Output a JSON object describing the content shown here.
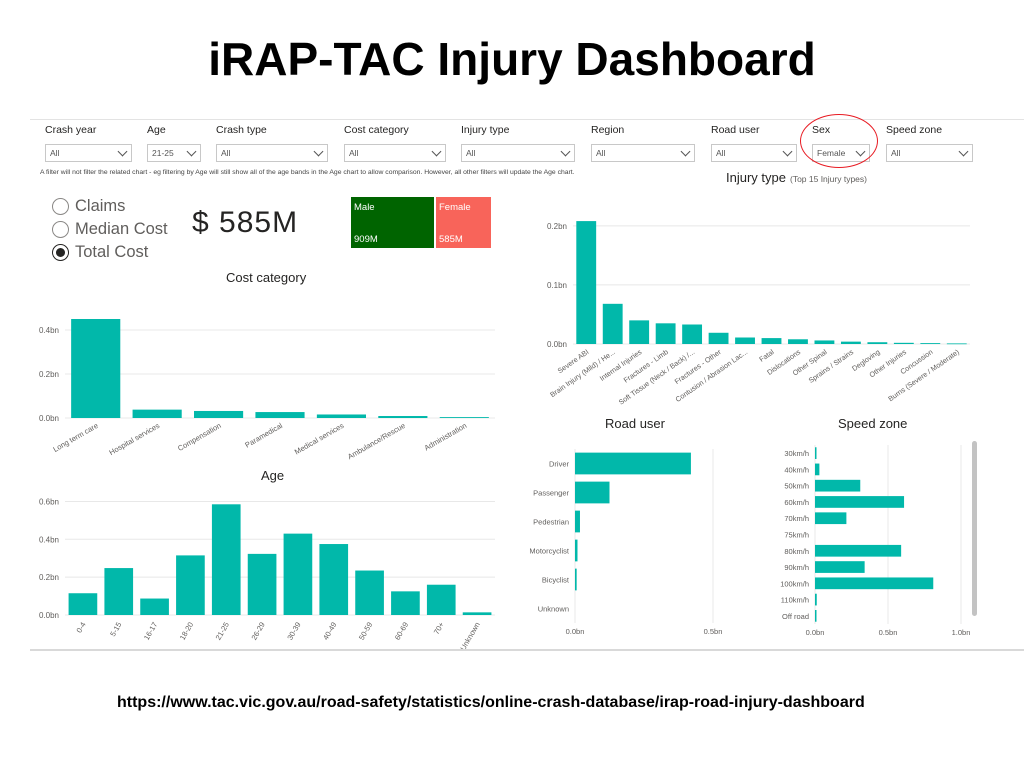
{
  "slide": {
    "title": "iRAP-TAC Injury Dashboard",
    "source_url": "https://www.tac.vic.gov.au/road-safety/statistics/online-crash-database/irap-road-injury-dashboard"
  },
  "filters": [
    {
      "label": "Crash year",
      "value": "All"
    },
    {
      "label": "Age",
      "value": "21-25"
    },
    {
      "label": "Crash type",
      "value": "All"
    },
    {
      "label": "Cost category",
      "value": "All"
    },
    {
      "label": "Injury type",
      "value": "All"
    },
    {
      "label": "Region",
      "value": "All"
    },
    {
      "label": "Road user",
      "value": "All"
    },
    {
      "label": "Sex",
      "value": "Female"
    },
    {
      "label": "Speed zone",
      "value": "All"
    }
  ],
  "filter_note": "A filter will not filter the related chart - eg filtering by Age will still show all of the age bands in the Age chart to allow comparison. However, all other filters will update the Age chart.",
  "measure_options": [
    {
      "label": "Claims",
      "selected": false
    },
    {
      "label": "Median Cost",
      "selected": false
    },
    {
      "label": "Total Cost",
      "selected": true
    }
  ],
  "total_cost_display": "$ 585M",
  "sex_tiles": [
    {
      "label": "Male",
      "value": "909M",
      "color": "#006400"
    },
    {
      "label": "Female",
      "value": "585M",
      "color": "#f8645a"
    }
  ],
  "colors": {
    "bar": "#01b8aa",
    "grid": "#e8e8e8",
    "axis_text": "#605e5c"
  },
  "chart_data": [
    {
      "id": "cost_category",
      "type": "bar",
      "title": "Cost category",
      "categories": [
        "Long term care",
        "Hospital services",
        "Compensation",
        "Paramedical",
        "Medical services",
        "Ambulance/Rescue",
        "Administration"
      ],
      "values": [
        0.45,
        0.038,
        0.032,
        0.027,
        0.016,
        0.009,
        0.004
      ],
      "ylim": [
        0,
        0.5
      ],
      "yticks": [
        0,
        0.2,
        0.4
      ],
      "ytick_labels": [
        "0.0bn",
        "0.2bn",
        "0.4bn"
      ],
      "xlabel": "",
      "ylabel": ""
    },
    {
      "id": "age",
      "type": "bar",
      "title": "Age",
      "categories": [
        "0-4",
        "5-15",
        "16-17",
        "18-20",
        "21-25",
        "26-29",
        "30-39",
        "40-49",
        "50-59",
        "60-69",
        "70+",
        "Unknown"
      ],
      "values": [
        0.115,
        0.248,
        0.087,
        0.315,
        0.585,
        0.323,
        0.43,
        0.375,
        0.235,
        0.125,
        0.16,
        0.014
      ],
      "ylim": [
        0,
        0.65
      ],
      "yticks": [
        0,
        0.2,
        0.4,
        0.6
      ],
      "ytick_labels": [
        "0.0bn",
        "0.2bn",
        "0.4bn",
        "0.6bn"
      ],
      "xlabel": "",
      "ylabel": ""
    },
    {
      "id": "injury_type",
      "type": "bar",
      "title": "Injury type",
      "subtitle": "(Top 15 Injury types)",
      "categories": [
        "Severe ABI",
        "Brain Injury (Mild) / He...",
        "Internal Injuries",
        "Fractures - Limb",
        "Soft Tissue (Neck / Back) /...",
        "Fractures - Other",
        "Contusion / Abrasion Lac...",
        "Fatal",
        "Dislocations",
        "Other Spinal",
        "Sprains / Strains",
        "Degloving",
        "Other Injuries",
        "Concussion",
        "Burns (Severe / Moderate)"
      ],
      "values": [
        0.208,
        0.068,
        0.04,
        0.035,
        0.033,
        0.019,
        0.011,
        0.01,
        0.008,
        0.006,
        0.004,
        0.003,
        0.002,
        0.0015,
        0.001
      ],
      "ylim": [
        0,
        0.22
      ],
      "yticks": [
        0,
        0.1,
        0.2
      ],
      "ytick_labels": [
        "0.0bn",
        "0.1bn",
        "0.2bn"
      ],
      "xlabel": "",
      "ylabel": ""
    },
    {
      "id": "road_user",
      "type": "bar",
      "orientation": "horizontal",
      "title": "Road user",
      "categories": [
        "Driver",
        "Passenger",
        "Pedestrian",
        "Motorcyclist",
        "Bicyclist",
        "Unknown"
      ],
      "values": [
        0.42,
        0.125,
        0.018,
        0.009,
        0.006,
        0
      ],
      "xlim": [
        0,
        0.5
      ],
      "xticks": [
        0,
        0.5
      ],
      "xtick_labels": [
        "0.0bn",
        "0.5bn"
      ],
      "xlabel": "",
      "ylabel": ""
    },
    {
      "id": "speed_zone",
      "type": "bar",
      "orientation": "horizontal",
      "title": "Speed zone",
      "categories": [
        "30km/h",
        "40km/h",
        "50km/h",
        "60km/h",
        "70km/h",
        "75km/h",
        "80km/h",
        "90km/h",
        "100km/h",
        "110km/h",
        "Off road"
      ],
      "values": [
        0.005,
        0.03,
        0.31,
        0.61,
        0.215,
        0,
        0.59,
        0.34,
        0.81,
        0.012,
        0.008
      ],
      "xlim": [
        0,
        1.0
      ],
      "xticks": [
        0,
        0.5,
        1.0
      ],
      "xtick_labels": [
        "0.0bn",
        "0.5bn",
        "1.0bn"
      ],
      "xlabel": "",
      "ylabel": ""
    }
  ]
}
